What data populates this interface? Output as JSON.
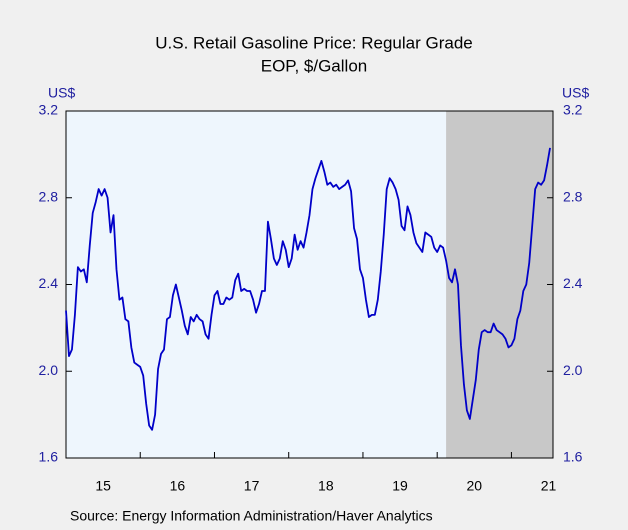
{
  "chart_data": {
    "type": "line",
    "title": "U.S. Retail Gasoline Price: Regular Grade",
    "subtitle": "EOP, $/Gallon",
    "y_unit_left": "US$",
    "y_unit_right": "US$",
    "source": "Source:  Energy Information Administration/Haver Analytics",
    "ylim": [
      1.6,
      3.2
    ],
    "yticks": [
      1.6,
      {
        "value": 2,
        "label": "2.0"
      },
      2.4,
      2.8,
      3.2
    ],
    "xlim": [
      2015,
      2021.56
    ],
    "xticks": [
      {
        "value": 2015.5,
        "label": "15"
      },
      {
        "value": 2016.5,
        "label": "16"
      },
      {
        "value": 2017.5,
        "label": "17"
      },
      {
        "value": 2018.5,
        "label": "18"
      },
      {
        "value": 2019.5,
        "label": "19"
      },
      {
        "value": 2020.5,
        "label": "20"
      },
      {
        "value": 2021.5,
        "label": "21"
      }
    ],
    "shaded_range": [
      2020.12,
      2021.56
    ],
    "shade_color": "#c8c8c8",
    "plot_background": "#eef6fd",
    "grid": false,
    "x": [
      2015,
      2015.04,
      2015.08,
      2015.12,
      2015.16,
      2015.2,
      2015.24,
      2015.28,
      2015.32,
      2015.36,
      2015.4,
      2015.44,
      2015.48,
      2015.52,
      2015.56,
      2015.6,
      2015.64,
      2015.68,
      2015.72,
      2015.76,
      2015.8,
      2015.84,
      2015.88,
      2015.92,
      2015.96,
      2016,
      2016.04,
      2016.08,
      2016.12,
      2016.16,
      2016.2,
      2016.24,
      2016.28,
      2016.32,
      2016.36,
      2016.4,
      2016.44,
      2016.48,
      2016.52,
      2016.56,
      2016.6,
      2016.64,
      2016.68,
      2016.72,
      2016.76,
      2016.8,
      2016.84,
      2016.88,
      2016.92,
      2016.96,
      2017,
      2017.04,
      2017.08,
      2017.12,
      2017.16,
      2017.2,
      2017.24,
      2017.28,
      2017.32,
      2017.36,
      2017.4,
      2017.44,
      2017.48,
      2017.52,
      2017.56,
      2017.6,
      2017.64,
      2017.68,
      2017.72,
      2017.76,
      2017.8,
      2017.84,
      2017.88,
      2017.92,
      2017.96,
      2018,
      2018.04,
      2018.08,
      2018.12,
      2018.16,
      2018.2,
      2018.24,
      2018.28,
      2018.32,
      2018.36,
      2018.4,
      2018.44,
      2018.48,
      2018.52,
      2018.56,
      2018.6,
      2018.64,
      2018.68,
      2018.72,
      2018.76,
      2018.8,
      2018.84,
      2018.88,
      2018.92,
      2018.96,
      2019,
      2019.04,
      2019.08,
      2019.12,
      2019.16,
      2019.2,
      2019.24,
      2019.28,
      2019.32,
      2019.36,
      2019.4,
      2019.44,
      2019.48,
      2019.52,
      2019.56,
      2019.6,
      2019.64,
      2019.68,
      2019.72,
      2019.76,
      2019.8,
      2019.84,
      2019.88,
      2019.92,
      2019.96,
      2020,
      2020.04,
      2020.08,
      2020.12,
      2020.16,
      2020.2,
      2020.24,
      2020.28,
      2020.32,
      2020.36,
      2020.4,
      2020.44,
      2020.48,
      2020.52,
      2020.56,
      2020.6,
      2020.64,
      2020.68,
      2020.72,
      2020.76,
      2020.8,
      2020.84,
      2020.88,
      2020.92,
      2020.96,
      2021,
      2021.04,
      2021.08,
      2021.12,
      2021.16,
      2021.2,
      2021.24,
      2021.28,
      2021.32,
      2021.36,
      2021.4,
      2021.44,
      2021.48,
      2021.52
    ],
    "series": [
      {
        "name": "U.S. Retail Gasoline Price: Regular Grade",
        "color": "#0000c8",
        "values": [
          2.28,
          2.07,
          2.1,
          2.26,
          2.48,
          2.46,
          2.47,
          2.41,
          2.58,
          2.73,
          2.78,
          2.84,
          2.81,
          2.84,
          2.8,
          2.64,
          2.72,
          2.47,
          2.33,
          2.34,
          2.24,
          2.23,
          2.11,
          2.04,
          2.03,
          2.02,
          1.98,
          1.85,
          1.75,
          1.73,
          1.8,
          2.01,
          2.08,
          2.1,
          2.24,
          2.25,
          2.35,
          2.4,
          2.34,
          2.28,
          2.21,
          2.17,
          2.25,
          2.23,
          2.26,
          2.24,
          2.23,
          2.17,
          2.15,
          2.26,
          2.35,
          2.37,
          2.31,
          2.31,
          2.34,
          2.33,
          2.34,
          2.42,
          2.45,
          2.37,
          2.38,
          2.37,
          2.37,
          2.33,
          2.27,
          2.31,
          2.37,
          2.37,
          2.69,
          2.61,
          2.52,
          2.49,
          2.52,
          2.6,
          2.56,
          2.48,
          2.52,
          2.63,
          2.56,
          2.6,
          2.57,
          2.64,
          2.72,
          2.84,
          2.89,
          2.93,
          2.97,
          2.92,
          2.86,
          2.87,
          2.85,
          2.86,
          2.84,
          2.85,
          2.86,
          2.88,
          2.83,
          2.66,
          2.61,
          2.47,
          2.43,
          2.33,
          2.25,
          2.26,
          2.26,
          2.33,
          2.46,
          2.63,
          2.84,
          2.89,
          2.87,
          2.84,
          2.79,
          2.67,
          2.65,
          2.76,
          2.72,
          2.64,
          2.59,
          2.57,
          2.55,
          2.64,
          2.63,
          2.62,
          2.57,
          2.55,
          2.58,
          2.57,
          2.51,
          2.43,
          2.41,
          2.47,
          2.4,
          2.12,
          1.94,
          1.82,
          1.78,
          1.87,
          1.96,
          2.1,
          2.18,
          2.19,
          2.18,
          2.18,
          2.22,
          2.19,
          2.18,
          2.17,
          2.15,
          2.11,
          2.12,
          2.15,
          2.24,
          2.28,
          2.37,
          2.4,
          2.5,
          2.67,
          2.84,
          2.87,
          2.86,
          2.88,
          2.95,
          3.03
        ]
      }
    ]
  }
}
